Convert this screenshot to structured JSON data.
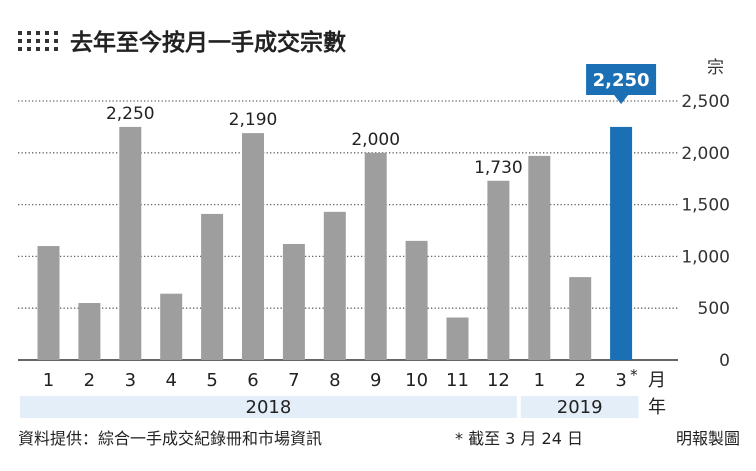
{
  "chart_data": {
    "type": "bar",
    "title": "去年至今按月一手成交宗數",
    "unit_label": "宗",
    "x_unit_label": "月",
    "year_axis_label": "年",
    "categories": [
      "1",
      "2",
      "3",
      "4",
      "5",
      "6",
      "7",
      "8",
      "9",
      "10",
      "11",
      "12",
      "1",
      "2",
      "3"
    ],
    "category_note": {
      "index": 14,
      "marker": "*"
    },
    "values": [
      1100,
      550,
      2250,
      640,
      1410,
      2190,
      1120,
      1430,
      2000,
      1150,
      410,
      1730,
      1970,
      800,
      2250
    ],
    "data_labels": [
      {
        "index": 2,
        "text": "2,250"
      },
      {
        "index": 5,
        "text": "2,190"
      },
      {
        "index": 8,
        "text": "2,000"
      },
      {
        "index": 11,
        "text": "1,730"
      }
    ],
    "highlight": {
      "index": 14,
      "text": "2,250",
      "color": "#1a6fb5"
    },
    "bar_color": "#9e9e9e",
    "year_groups": [
      {
        "label": "2018",
        "start": 0,
        "end": 11
      },
      {
        "label": "2019",
        "start": 12,
        "end": 14
      }
    ],
    "ylim": [
      0,
      2500
    ],
    "yticks": [
      0,
      500,
      1000,
      1500,
      2000,
      2500
    ],
    "ytick_labels": [
      "0",
      "500",
      "1,000",
      "1,500",
      "2,000",
      "2,500"
    ],
    "grid": true,
    "axis_side": "right"
  },
  "footer": {
    "source": "資料提供：綜合一手成交紀錄冊和市場資訊",
    "note": "* 截至 3 月 24 日",
    "credit": "明報製圖"
  },
  "colors": {
    "band": "#e3eef8",
    "axis": "#333333",
    "title_dots": "#333333"
  }
}
